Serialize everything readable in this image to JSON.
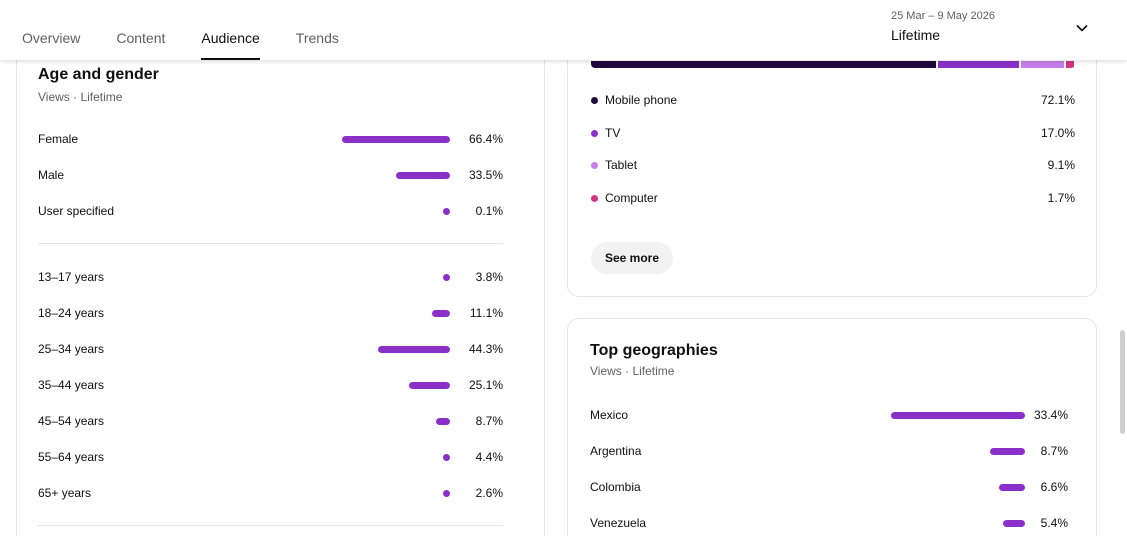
{
  "header": {
    "tabs": [
      {
        "label": "Overview",
        "active": false
      },
      {
        "label": "Content",
        "active": false
      },
      {
        "label": "Audience",
        "active": true
      },
      {
        "label": "Trends",
        "active": false
      }
    ],
    "date_range": "25 Mar – 9 May 2026",
    "period": "Lifetime"
  },
  "age_gender": {
    "title": "Age and gender",
    "subtitle": "Views · Lifetime",
    "gender": [
      {
        "label": "Female",
        "value": "66.4%",
        "pct": 66.4
      },
      {
        "label": "Male",
        "value": "33.5%",
        "pct": 33.5
      },
      {
        "label": "User specified",
        "value": "0.1%",
        "pct": 0.1
      }
    ],
    "ages": [
      {
        "label": "13–17 years",
        "value": "3.8%",
        "pct": 3.8
      },
      {
        "label": "18–24 years",
        "value": "11.1%",
        "pct": 11.1
      },
      {
        "label": "25–34 years",
        "value": "44.3%",
        "pct": 44.3
      },
      {
        "label": "35–44 years",
        "value": "25.1%",
        "pct": 25.1
      },
      {
        "label": "45–54 years",
        "value": "8.7%",
        "pct": 8.7
      },
      {
        "label": "55–64 years",
        "value": "4.4%",
        "pct": 4.4
      },
      {
        "label": "65+ years",
        "value": "2.6%",
        "pct": 2.6
      }
    ]
  },
  "device": {
    "items": [
      {
        "label": "Mobile phone",
        "value": "72.1%",
        "pct": 72.1,
        "color": "#1f0a3d"
      },
      {
        "label": "TV",
        "value": "17.0%",
        "pct": 17.0,
        "color": "#8b2fc9"
      },
      {
        "label": "Tablet",
        "value": "9.1%",
        "pct": 9.1,
        "color": "#c77ee8"
      },
      {
        "label": "Computer",
        "value": "1.7%",
        "pct": 1.7,
        "color": "#d63384"
      }
    ],
    "see_more": "See more"
  },
  "geographies": {
    "title": "Top geographies",
    "subtitle": "Views · Lifetime",
    "items": [
      {
        "label": "Mexico",
        "value": "33.4%",
        "pct": 33.4
      },
      {
        "label": "Argentina",
        "value": "8.7%",
        "pct": 8.7
      },
      {
        "label": "Colombia",
        "value": "6.6%",
        "pct": 6.6
      },
      {
        "label": "Venezuela",
        "value": "5.4%",
        "pct": 5.4
      }
    ]
  },
  "colors": {
    "accent": "#8b2fc9"
  }
}
